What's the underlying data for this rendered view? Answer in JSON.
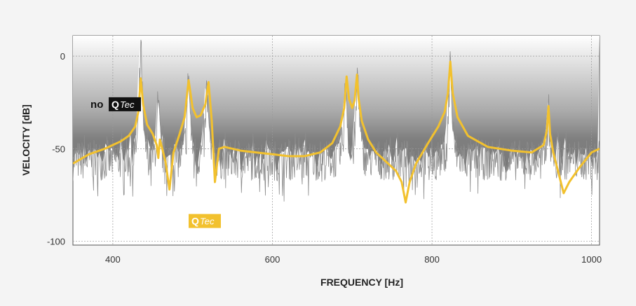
{
  "chart_data": {
    "type": "line",
    "xlabel": "FREQUENCY [Hz]",
    "ylabel": "VELOCITY [dB]",
    "xlim": [
      350,
      1010
    ],
    "ylim": [
      -102,
      11
    ],
    "x_ticks": [
      400,
      600,
      800,
      1000
    ],
    "y_ticks": [
      0,
      -50,
      -100
    ],
    "grid": true,
    "series": [
      {
        "name": "no QTec",
        "color": "#8c8c8c",
        "style": "noisy",
        "baseline": -53,
        "peaks": [
          [
            435,
            8
          ],
          [
            457,
            -26
          ],
          [
            471,
            -75
          ],
          [
            495,
            -6
          ],
          [
            518,
            -14
          ],
          [
            528,
            -70
          ],
          [
            692,
            -10
          ],
          [
            707,
            -5
          ],
          [
            767,
            -80
          ],
          [
            823,
            0
          ],
          [
            946,
            -27
          ],
          [
            965,
            -75
          ]
        ]
      },
      {
        "name": "QTec",
        "color": "#f2c12e",
        "style": "smooth",
        "x": [
          350,
          370,
          390,
          410,
          420,
          428,
          432,
          435,
          438,
          443,
          450,
          455,
          457,
          459,
          462,
          466,
          471,
          476,
          483,
          490,
          495,
          500,
          505,
          510,
          516,
          520,
          524,
          528,
          533,
          540,
          560,
          580,
          600,
          620,
          640,
          660,
          675,
          685,
          690,
          693,
          696,
          700,
          703,
          706,
          708,
          712,
          720,
          730,
          745,
          755,
          762,
          767,
          772,
          780,
          795,
          808,
          816,
          820,
          823,
          826,
          832,
          845,
          870,
          900,
          925,
          940,
          944,
          946,
          948,
          952,
          958,
          965,
          972,
          985,
          1000,
          1010
        ],
        "y": [
          -58,
          -53,
          -50,
          -46,
          -43,
          -38,
          -30,
          -12,
          -26,
          -37,
          -42,
          -48,
          -55,
          -45,
          -50,
          -57,
          -72,
          -52,
          -43,
          -33,
          -13,
          -28,
          -33,
          -32,
          -26,
          -14,
          -35,
          -68,
          -50,
          -49,
          -51,
          -52,
          -53,
          -54,
          -54,
          -52,
          -47,
          -38,
          -28,
          -11,
          -23,
          -28,
          -24,
          -10,
          -23,
          -35,
          -45,
          -52,
          -58,
          -62,
          -68,
          -79,
          -68,
          -58,
          -47,
          -38,
          -30,
          -20,
          -3,
          -20,
          -33,
          -43,
          -49,
          -51,
          -52,
          -48,
          -40,
          -27,
          -42,
          -52,
          -62,
          -74,
          -68,
          -60,
          -52,
          -50
        ]
      }
    ],
    "annotations": [
      {
        "prefix": "no",
        "badge_q": "Q",
        "badge_rest": "Tec",
        "badge_style": "dark",
        "x": 372,
        "y": -26
      },
      {
        "prefix": "",
        "badge_q": "Q",
        "badge_rest": "Tec",
        "badge_style": "gold",
        "x": 495,
        "y": -89
      }
    ]
  }
}
